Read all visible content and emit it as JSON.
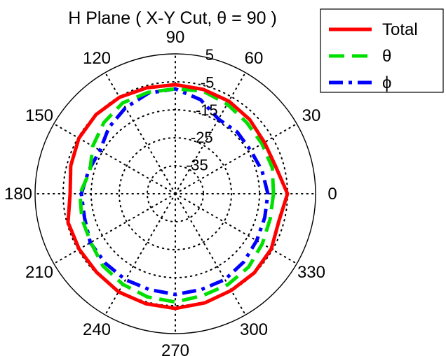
{
  "chart_data": {
    "type": "polar",
    "title": "H Plane ( X-Y Cut, θ = 90 )",
    "angle_ticks": [
      "0",
      "30",
      "60",
      "90",
      "120",
      "150",
      "180",
      "210",
      "240",
      "270",
      "300",
      "330"
    ],
    "radial_ticks": [
      "5",
      "-5",
      "-15",
      "-25",
      "-35"
    ],
    "rlim": [
      -45,
      5
    ],
    "grid": true,
    "legend": "top-right",
    "series": [
      {
        "name": "Total",
        "color": "#ff0000",
        "style": "solid",
        "theta": [
          0,
          15,
          30,
          45,
          60,
          75,
          90,
          105,
          120,
          135,
          150,
          165,
          180,
          195,
          210,
          225,
          240,
          255,
          270,
          285,
          300,
          315,
          330,
          345
        ],
        "r": [
          -5.0,
          -7.9,
          -8.3,
          -7.5,
          -6.8,
          -6.4,
          -6.0,
          -5.8,
          -5.2,
          -5.0,
          -5.3,
          -6.4,
          -7.5,
          -5.4,
          -5.4,
          -5.3,
          -4.5,
          -4.3,
          -4.0,
          -4.6,
          -5.1,
          -5.1,
          -5.5,
          -6.8
        ]
      },
      {
        "name": "θ",
        "color": "#00e000",
        "style": "dashed",
        "theta": [
          0,
          15,
          30,
          45,
          60,
          75,
          90,
          105,
          120,
          135,
          150,
          165,
          180,
          195,
          210,
          225,
          240,
          255,
          270,
          285,
          300,
          315,
          330,
          345
        ],
        "r": [
          -10.0,
          -9.2,
          -9.3,
          -9.0,
          -8.0,
          -7.0,
          -7.5,
          -7.5,
          -7.5,
          -9.0,
          -11.0,
          -13.5,
          -11.0,
          -10.5,
          -10.2,
          -8.5,
          -7.6,
          -6.8,
          -6.3,
          -7.3,
          -7.5,
          -8.0,
          -9.2,
          -10.0
        ]
      },
      {
        "name": "ϕ",
        "color": "#0000ff",
        "style": "dashdot",
        "theta": [
          0,
          15,
          30,
          45,
          60,
          75,
          90,
          105,
          120,
          135,
          150,
          165,
          180,
          195,
          210,
          225,
          240,
          255,
          270,
          285,
          300,
          315,
          330,
          345
        ],
        "r": [
          -12.0,
          -13.0,
          -14.0,
          -13.8,
          -14.2,
          -10.2,
          -7.5,
          -7.8,
          -9.5,
          -11.5,
          -14.0,
          -13.0,
          -11.5,
          -11.5,
          -10.0,
          -9.8,
          -9.5,
          -9.5,
          -9.0,
          -9.5,
          -9.6,
          -10.5,
          -11.5,
          -12.0
        ]
      }
    ]
  }
}
